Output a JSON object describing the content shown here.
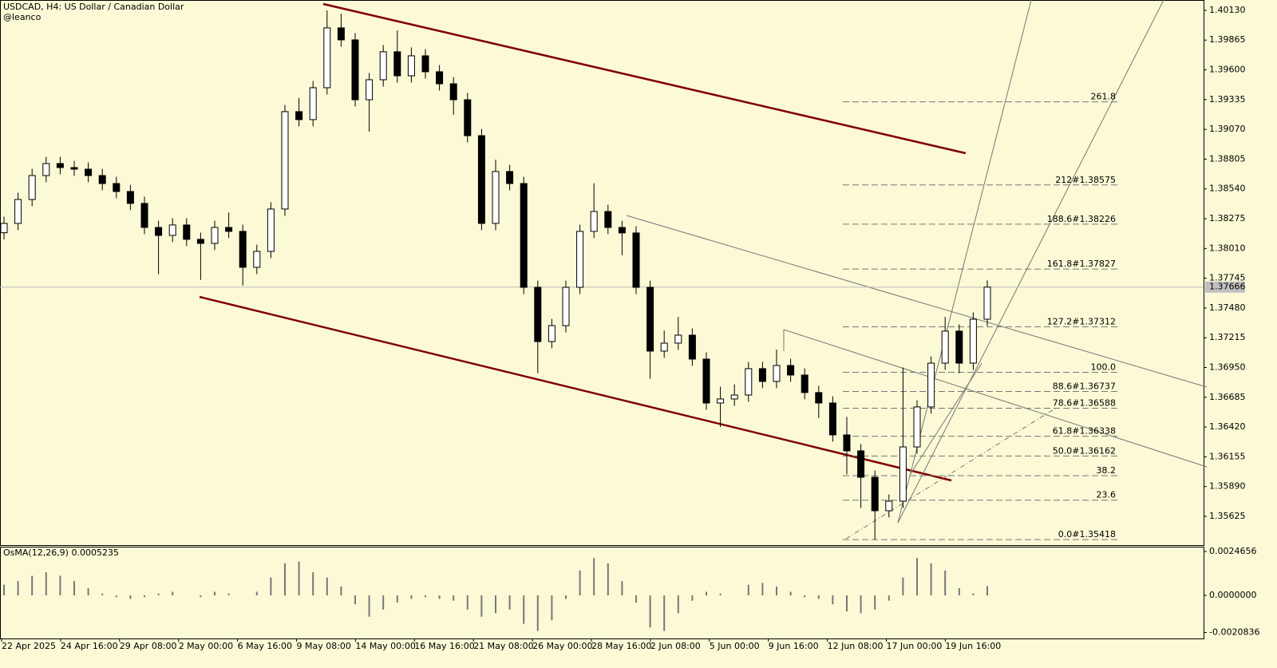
{
  "chart_data": {
    "type": "candlestick",
    "title": "USDCAD, H4:  US Dollar / Canadian Dollar",
    "subtitle": "@leanco",
    "candles": {
      "open": [
        1.3815,
        1.38233,
        1.38446,
        1.38659,
        1.38766,
        1.3873,
        1.38716,
        1.38659,
        1.38588,
        1.38517,
        1.38411,
        1.38197,
        1.38126,
        1.38219,
        1.38091,
        1.38055,
        1.38197,
        1.38162,
        1.37842,
        1.37984,
        1.38361,
        1.39228,
        1.39157,
        1.39441,
        1.39974,
        1.39867,
        1.39334,
        1.39512,
        1.39761,
        1.39547,
        1.39725,
        1.39583,
        1.39476,
        1.39334,
        1.39014,
        1.38233,
        1.38695,
        1.38588,
        1.37664,
        1.37181,
        1.37323,
        1.37664,
        1.38162,
        1.38339,
        1.38197,
        1.38148,
        1.37664,
        1.37096,
        1.37167,
        1.37238,
        1.37025,
        1.36634,
        1.3667,
        1.36705,
        1.3694,
        1.36826,
        1.36968,
        1.36883,
        1.36727,
        1.36634,
        1.3635,
        1.36208,
        1.35973,
        1.35675,
        1.3576,
        1.36243,
        1.36599,
        1.36989,
        1.37274,
        1.36989,
        1.3738
      ],
      "high": [
        1.38293,
        1.38506,
        1.38719,
        1.38826,
        1.38826,
        1.3879,
        1.38776,
        1.38719,
        1.38648,
        1.38577,
        1.38471,
        1.38257,
        1.38279,
        1.38279,
        1.38151,
        1.38257,
        1.3833,
        1.38222,
        1.38044,
        1.38421,
        1.39288,
        1.3935,
        1.39501,
        1.4013,
        1.401,
        1.39927,
        1.39572,
        1.39821,
        1.3995,
        1.398,
        1.39785,
        1.39643,
        1.39536,
        1.39394,
        1.39074,
        1.388,
        1.38755,
        1.38648,
        1.37724,
        1.37383,
        1.37724,
        1.38222,
        1.3859,
        1.38399,
        1.38257,
        1.38208,
        1.37724,
        1.3728,
        1.374,
        1.37298,
        1.37085,
        1.3678,
        1.368,
        1.37,
        1.37,
        1.3711,
        1.37028,
        1.36943,
        1.36787,
        1.36694,
        1.3651,
        1.36268,
        1.36033,
        1.3582,
        1.3695,
        1.36659,
        1.37049,
        1.374,
        1.37334,
        1.3744,
        1.37726
      ],
      "low": [
        1.3809,
        1.38173,
        1.38386,
        1.38599,
        1.3867,
        1.38656,
        1.38599,
        1.38528,
        1.38457,
        1.38351,
        1.38137,
        1.3778,
        1.38066,
        1.38031,
        1.3773,
        1.37995,
        1.38102,
        1.3768,
        1.37782,
        1.37924,
        1.38301,
        1.39097,
        1.39097,
        1.39381,
        1.39807,
        1.39274,
        1.3905,
        1.39452,
        1.39487,
        1.39487,
        1.39523,
        1.39416,
        1.392,
        1.38954,
        1.38173,
        1.38173,
        1.38528,
        1.37604,
        1.369,
        1.37121,
        1.37263,
        1.37604,
        1.38102,
        1.38137,
        1.3795,
        1.37604,
        1.3685,
        1.37036,
        1.37107,
        1.36965,
        1.36574,
        1.3642,
        1.3661,
        1.36645,
        1.36766,
        1.36766,
        1.36823,
        1.36667,
        1.365,
        1.3629,
        1.36,
        1.357,
        1.35418,
        1.35615,
        1.357,
        1.36183,
        1.36539,
        1.36929,
        1.369,
        1.36929,
        1.3732
      ],
      "close": [
        1.38233,
        1.38446,
        1.38659,
        1.38766,
        1.3873,
        1.38716,
        1.38659,
        1.38588,
        1.38517,
        1.38411,
        1.38197,
        1.38126,
        1.38219,
        1.38091,
        1.38055,
        1.38197,
        1.38162,
        1.37842,
        1.37984,
        1.38361,
        1.39228,
        1.39157,
        1.39441,
        1.39974,
        1.39867,
        1.39334,
        1.39512,
        1.39761,
        1.39547,
        1.39725,
        1.39583,
        1.39476,
        1.39334,
        1.39014,
        1.38233,
        1.38695,
        1.38588,
        1.37664,
        1.37181,
        1.37323,
        1.37664,
        1.38162,
        1.38339,
        1.38197,
        1.38148,
        1.37664,
        1.37096,
        1.37167,
        1.37238,
        1.37025,
        1.36634,
        1.3667,
        1.36705,
        1.3694,
        1.36826,
        1.36968,
        1.36883,
        1.36727,
        1.36634,
        1.3635,
        1.36208,
        1.35973,
        1.35675,
        1.3576,
        1.36243,
        1.36599,
        1.36989,
        1.37274,
        1.36989,
        1.3738,
        1.37666
      ]
    },
    "last_price": 1.37666,
    "ylim": [
      1.35369,
      1.40222
    ],
    "yticks": [
      {
        "value": 1.4013,
        "label": "1.40130"
      },
      {
        "value": 1.39865,
        "label": "1.39865"
      },
      {
        "value": 1.396,
        "label": "1.39600"
      },
      {
        "value": 1.39335,
        "label": "1.39335"
      },
      {
        "value": 1.3907,
        "label": "1.39070"
      },
      {
        "value": 1.38805,
        "label": "1.38805"
      },
      {
        "value": 1.3854,
        "label": "1.38540"
      },
      {
        "value": 1.38275,
        "label": "1.38275"
      },
      {
        "value": 1.3801,
        "label": "1.38010"
      },
      {
        "value": 1.37745,
        "label": "1.37745"
      },
      {
        "value": 1.3748,
        "label": "1.37480"
      },
      {
        "value": 1.37215,
        "label": "1.37215"
      },
      {
        "value": 1.3695,
        "label": "1.36950"
      },
      {
        "value": 1.36685,
        "label": "1.36685"
      },
      {
        "value": 1.3642,
        "label": "1.36420"
      },
      {
        "value": 1.36155,
        "label": "1.36155"
      },
      {
        "value": 1.3589,
        "label": "1.35890"
      },
      {
        "value": 1.35625,
        "label": "1.35625"
      }
    ],
    "fib_levels": [
      {
        "label": "261.8",
        "price": 1.39315
      },
      {
        "label": "212#1.38575",
        "price": 1.38575
      },
      {
        "label": "188.6#1.38226",
        "price": 1.38226
      },
      {
        "label": "161.8#1.37827",
        "price": 1.37827
      },
      {
        "label": "127.2#1.37312",
        "price": 1.37312
      },
      {
        "label": "100.0",
        "price": 1.36907
      },
      {
        "label": "88.6#1.36737",
        "price": 1.36737
      },
      {
        "label": "78.6#1.36588",
        "price": 1.36588
      },
      {
        "label": "61.8#1.36338",
        "price": 1.36338
      },
      {
        "label": "50.0#1.36162",
        "price": 1.36162
      },
      {
        "label": "38.2",
        "price": 1.35987
      },
      {
        "label": "23.6",
        "price": 1.35769
      },
      {
        "label": "0.0#1.35418",
        "price": 1.35418
      }
    ],
    "xtick_labels": [
      "22 Apr 2025",
      "24 Apr 16:00",
      "29 Apr 08:00",
      "2 May 00:00",
      "6 May 16:00",
      "9 May 08:00",
      "14 May 00:00",
      "16 May 16:00",
      "21 May 08:00",
      "26 May 00:00",
      "28 May 16:00",
      "2 Jun 08:00",
      "5 Jun 00:00",
      "9 Jun 16:00",
      "12 Jun 08:00",
      "17 Jun 00:00",
      "19 Jun 16:00"
    ],
    "indicator": {
      "title": "OsMA(12,26,9) 0.0005235",
      "values": [
        0.0006,
        0.0008,
        0.0011,
        0.0013,
        0.0011,
        0.0008,
        0.0004,
        0.0001,
        -0.0001,
        -0.0002,
        -0.0001,
        0.0001,
        0.0002,
        0.0,
        -0.0001,
        0.0002,
        0.0001,
        0.0,
        0.0002,
        0.001,
        0.0018,
        0.0019,
        0.0013,
        0.001,
        0.0005,
        -0.0005,
        -0.0012,
        -0.0008,
        -0.0004,
        -0.0002,
        -0.0001,
        -0.0002,
        -0.0003,
        -0.0008,
        -0.0012,
        -0.001,
        -0.0008,
        -0.0016,
        -0.002,
        -0.0014,
        -0.0002,
        0.0014,
        0.0021,
        0.0018,
        0.0008,
        -0.0004,
        -0.0018,
        -0.002,
        -0.001,
        -0.0003,
        0.0002,
        0.0001,
        0.0,
        0.0006,
        0.0007,
        0.0005,
        0.0002,
        -0.0001,
        -0.0002,
        -0.0005,
        -0.0009,
        -0.001,
        -0.0008,
        -0.0003,
        0.001,
        0.0021,
        0.0018,
        0.0014,
        0.0004,
        0.0001,
        0.0005235
      ],
      "ylim": [
        -0.002421,
        0.002734
      ],
      "yticks": [
        0.0024656,
        {
          "value": 0,
          "label": "0.0000000"
        },
        -0.0020836
      ]
    }
  }
}
